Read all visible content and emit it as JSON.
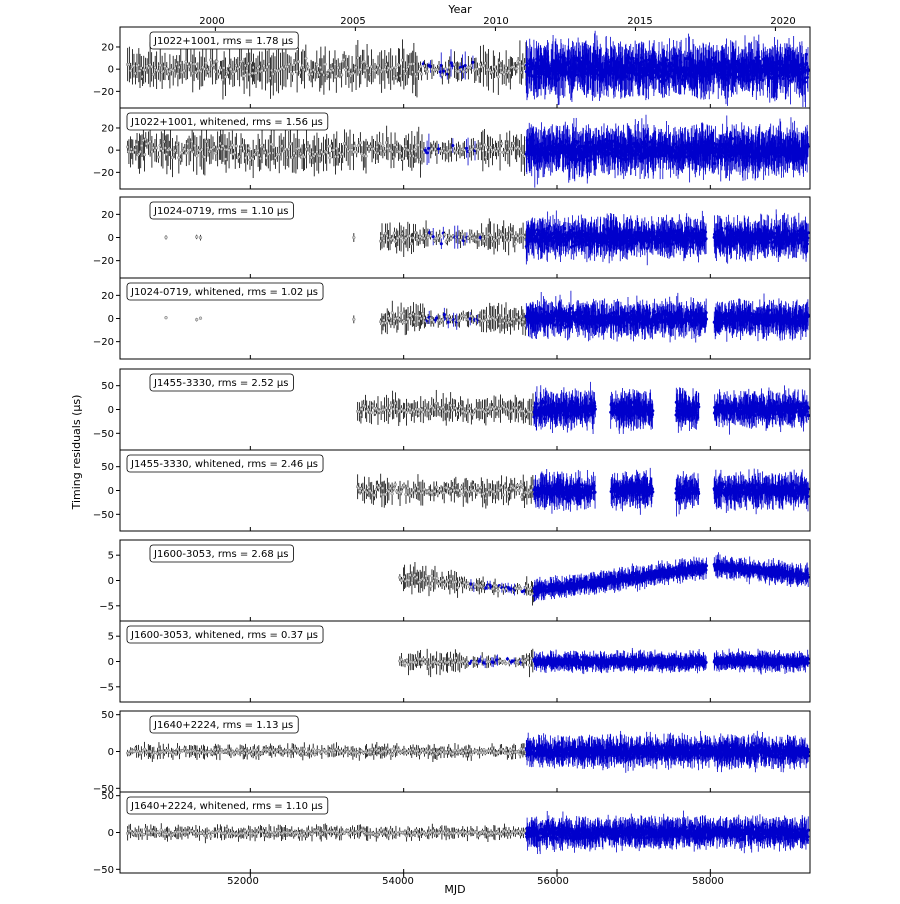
{
  "figure": {
    "top_axis_title": "Year",
    "bottom_axis_title": "MJD",
    "y_axis_title": "Timing residuals (μs)",
    "top_ticks": [
      "2000",
      "2005",
      "2010",
      "2015",
      "2020"
    ],
    "bottom_ticks": [
      "52000",
      "54000",
      "56000",
      "58000"
    ]
  },
  "colors": {
    "old_data": "#000000",
    "old_marker_fill": "#d0d0d0",
    "new_data": "#0000cc",
    "frame": "#000000"
  },
  "chart_data": [
    {
      "type": "scatter",
      "label": "J1022+1001, rms = 1.78 μs",
      "pulsar": "J1022+1001",
      "rms_us": 1.78,
      "yticks": [
        "20",
        "0",
        "−20"
      ],
      "ytick_values": [
        20,
        0,
        -20
      ],
      "ylim": [
        -35,
        38
      ],
      "xlim": [
        50300,
        59300
      ],
      "data_start_mjd": 50400,
      "blue_start_mjd": 55600,
      "gaps": [],
      "amp_old": 12,
      "amp_new": 14,
      "trend": "none",
      "dense_blue_mjd": [
        54250,
        55000
      ]
    },
    {
      "type": "scatter",
      "label": "J1022+1001, whitened, rms = 1.56 μs",
      "pulsar": "J1022+1001",
      "rms_us": 1.56,
      "yticks": [
        "20",
        "0",
        "−20"
      ],
      "ytick_values": [
        20,
        0,
        -20
      ],
      "ylim": [
        -35,
        38
      ],
      "xlim": [
        50300,
        59300
      ],
      "data_start_mjd": 50400,
      "blue_start_mjd": 55600,
      "gaps": [],
      "amp_old": 11,
      "amp_new": 13,
      "trend": "none",
      "dense_blue_mjd": [
        54250,
        55000
      ]
    },
    {
      "type": "scatter",
      "label": "J1024-0719, rms = 1.10 μs",
      "pulsar": "J1024-0719",
      "rms_us": 1.1,
      "yticks": [
        "20",
        "0",
        "−20"
      ],
      "ytick_values": [
        20,
        0,
        -20
      ],
      "ylim": [
        -35,
        35
      ],
      "xlim": [
        50300,
        59300
      ],
      "data_start_mjd": 53700,
      "blue_start_mjd": 55600,
      "early_points_mjd": [
        50900,
        51300,
        51350,
        53350
      ],
      "gaps": [
        [
          57950,
          58050
        ]
      ],
      "amp_old": 8,
      "amp_new": 10,
      "trend": "none",
      "dense_blue_mjd": [
        54300,
        55000
      ]
    },
    {
      "type": "scatter",
      "label": "J1024-0719, whitened, rms = 1.02 μs",
      "pulsar": "J1024-0719",
      "rms_us": 1.02,
      "yticks": [
        "20",
        "0",
        "−20"
      ],
      "ytick_values": [
        20,
        0,
        -20
      ],
      "ylim": [
        -35,
        35
      ],
      "xlim": [
        50300,
        59300
      ],
      "data_start_mjd": 53700,
      "blue_start_mjd": 55600,
      "early_points_mjd": [
        50900,
        51300,
        51350,
        53350
      ],
      "gaps": [
        [
          57950,
          58050
        ]
      ],
      "amp_old": 7,
      "amp_new": 9,
      "trend": "none",
      "dense_blue_mjd": [
        54300,
        55000
      ]
    },
    {
      "type": "scatter",
      "label": "J1455-3330, rms = 2.52 μs",
      "pulsar": "J1455-3330",
      "rms_us": 2.52,
      "yticks": [
        "50",
        "0",
        "−50"
      ],
      "ytick_values": [
        50,
        0,
        -50
      ],
      "ylim": [
        -85,
        85
      ],
      "xlim": [
        50300,
        59300
      ],
      "data_start_mjd": 53400,
      "blue_start_mjd": 55700,
      "gaps": [
        [
          56500,
          56700
        ],
        [
          57250,
          57550
        ],
        [
          57850,
          58050
        ]
      ],
      "amp_old": 18,
      "amp_new": 22,
      "trend": "none",
      "dense_blue_mjd": []
    },
    {
      "type": "scatter",
      "label": "J1455-3330, whitened, rms = 2.46 μs",
      "pulsar": "J1455-3330",
      "rms_us": 2.46,
      "yticks": [
        "50",
        "0",
        "−50"
      ],
      "ytick_values": [
        50,
        0,
        -50
      ],
      "ylim": [
        -85,
        85
      ],
      "xlim": [
        50300,
        59300
      ],
      "data_start_mjd": 53400,
      "blue_start_mjd": 55700,
      "gaps": [
        [
          56500,
          56700
        ],
        [
          57250,
          57550
        ],
        [
          57850,
          58050
        ]
      ],
      "amp_old": 17,
      "amp_new": 21,
      "trend": "none",
      "dense_blue_mjd": []
    },
    {
      "type": "scatter",
      "label": "J1600-3053, rms = 2.68 μs",
      "pulsar": "J1600-3053",
      "rms_us": 2.68,
      "yticks": [
        "5",
        "0",
        "−5"
      ],
      "ytick_values": [
        5,
        0,
        -5
      ],
      "ylim": [
        -8,
        8
      ],
      "xlim": [
        50300,
        59300
      ],
      "data_start_mjd": 53950,
      "blue_start_mjd": 55700,
      "gaps": [
        [
          57950,
          58050
        ]
      ],
      "amp_old": 1.6,
      "amp_new": 1.2,
      "trend": "drift",
      "dense_blue_mjd": [
        54800,
        55600
      ]
    },
    {
      "type": "scatter",
      "label": "J1600-3053, whitened, rms = 0.37 μs",
      "pulsar": "J1600-3053",
      "rms_us": 0.37,
      "yticks": [
        "5",
        "0",
        "−5"
      ],
      "ytick_values": [
        5,
        0,
        -5
      ],
      "ylim": [
        -8,
        8
      ],
      "xlim": [
        50300,
        59300
      ],
      "data_start_mjd": 53950,
      "blue_start_mjd": 55700,
      "gaps": [
        [
          57950,
          58050
        ]
      ],
      "amp_old": 1.4,
      "amp_new": 1.1,
      "trend": "none",
      "dense_blue_mjd": [
        54800,
        55600
      ]
    },
    {
      "type": "scatter",
      "label": "J1640+2224, rms = 1.13 μs",
      "pulsar": "J1640+2224",
      "rms_us": 1.13,
      "yticks": [
        "50",
        "0",
        "−50"
      ],
      "ytick_values": [
        50,
        0,
        -50
      ],
      "ylim": [
        -55,
        55
      ],
      "xlim": [
        50300,
        59300
      ],
      "data_start_mjd": 50400,
      "blue_start_mjd": 55600,
      "gaps": [],
      "amp_old": 6,
      "amp_new": 12,
      "trend": "none",
      "dense_blue_mjd": []
    },
    {
      "type": "scatter",
      "label": "J1640+2224, whitened, rms = 1.10 μs",
      "pulsar": "J1640+2224",
      "rms_us": 1.1,
      "yticks": [
        "50",
        "0",
        "−50"
      ],
      "ytick_values": [
        50,
        0,
        -50
      ],
      "ylim": [
        -55,
        55
      ],
      "xlim": [
        50300,
        59300
      ],
      "data_start_mjd": 50400,
      "blue_start_mjd": 55600,
      "gaps": [],
      "amp_old": 6,
      "amp_new": 12,
      "trend": "none",
      "dense_blue_mjd": []
    }
  ]
}
